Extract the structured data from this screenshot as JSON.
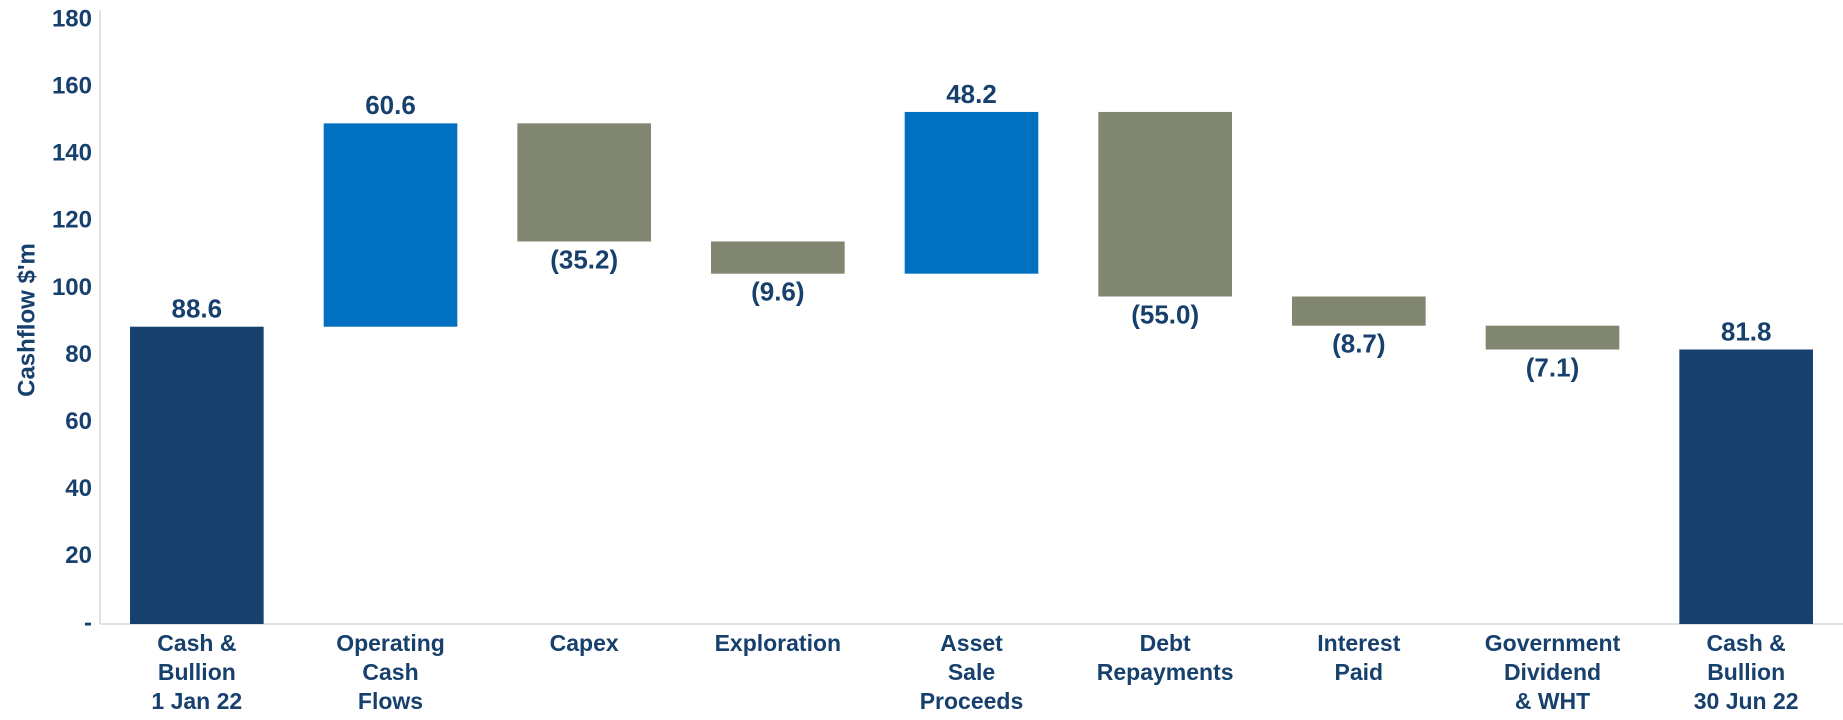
{
  "chart_data": {
    "type": "waterfall",
    "y_axis_label": "Cashflow $'m",
    "categories": [
      [
        "Cash &",
        "Bullion",
        "1 Jan 22"
      ],
      [
        "Operating",
        "Cash",
        "Flows"
      ],
      [
        "Capex"
      ],
      [
        "Exploration"
      ],
      [
        "Asset",
        "Sale",
        "Proceeds"
      ],
      [
        "Debt",
        "Repayments"
      ],
      [
        "Interest",
        "Paid"
      ],
      [
        "Government",
        "Dividend",
        "& WHT"
      ],
      [
        "Cash &",
        "Bullion",
        "30 Jun 22"
      ]
    ],
    "values": [
      88.6,
      60.6,
      -35.2,
      -9.6,
      48.2,
      -55.0,
      -8.7,
      -7.1,
      81.8
    ],
    "value_labels": [
      "88.6",
      "60.6",
      "(35.2)",
      "(9.6)",
      "48.2",
      "(55.0)",
      "(8.7)",
      "(7.1)",
      "81.8"
    ],
    "measure": [
      "total",
      "relative",
      "relative",
      "relative",
      "relative",
      "relative",
      "relative",
      "relative",
      "total"
    ],
    "colors": {
      "total": "#17406d",
      "increase": "#0070c0",
      "decrease": "#808670"
    },
    "ylim": [
      0,
      180
    ],
    "yticks": [
      {
        "value": 0,
        "label": "-"
      },
      20,
      40,
      60,
      80,
      100,
      120,
      140,
      160,
      180
    ],
    "grid": false
  }
}
